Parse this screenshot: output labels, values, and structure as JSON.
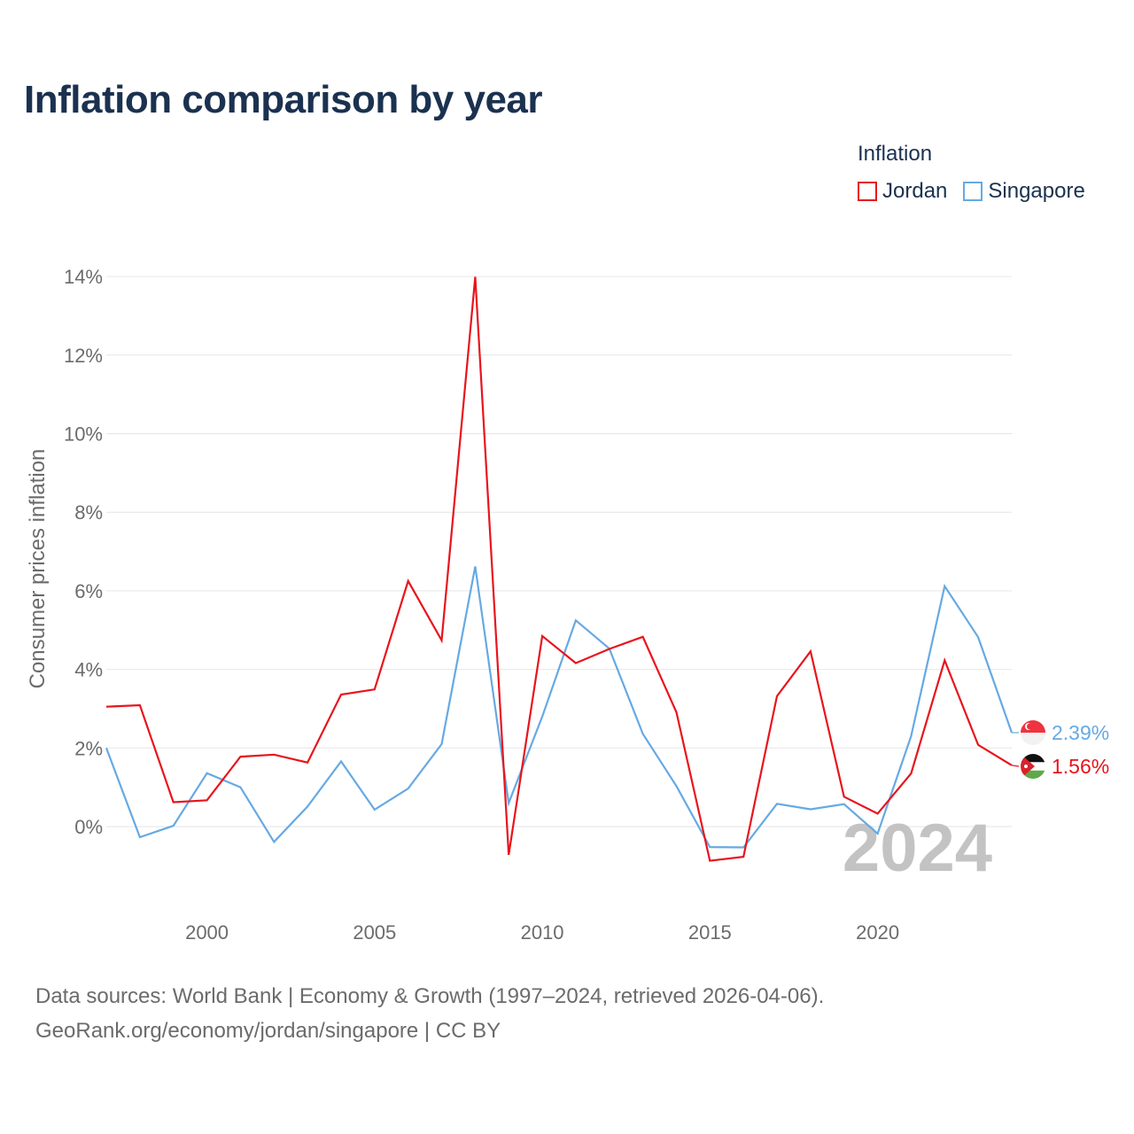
{
  "title": "Inflation comparison by year",
  "legend": {
    "title": "Inflation",
    "items": [
      {
        "label": "Jordan",
        "color": "#e8141c"
      },
      {
        "label": "Singapore",
        "color": "#66a9e3"
      }
    ]
  },
  "footer": {
    "line1": "Data sources: World Bank | Economy & Growth (1997–2024, retrieved 2026-04-06).",
    "line2": "GeoRank.org/economy/jordan/singapore | CC BY"
  },
  "chart_data": {
    "type": "line",
    "title": "Inflation comparison by year",
    "xlabel": "",
    "ylabel": "Consumer prices inflation",
    "x": [
      1997,
      1998,
      1999,
      2000,
      2001,
      2002,
      2003,
      2004,
      2005,
      2006,
      2007,
      2008,
      2009,
      2010,
      2011,
      2012,
      2013,
      2014,
      2015,
      2016,
      2017,
      2018,
      2019,
      2020,
      2021,
      2022,
      2023,
      2024
    ],
    "xlim": [
      1997,
      2024
    ],
    "ylim": [
      -2,
      14
    ],
    "xticks": [
      2000,
      2005,
      2010,
      2015,
      2020
    ],
    "xtick_labels": [
      "2000",
      "2005",
      "2010",
      "2015",
      "2020"
    ],
    "yticks": [
      0,
      2,
      4,
      6,
      8,
      10,
      12,
      14
    ],
    "ytick_labels": [
      "0%",
      "2%",
      "4%",
      "6%",
      "8%",
      "10%",
      "12%",
      "14%"
    ],
    "grid": true,
    "year_watermark": "2024",
    "series": [
      {
        "name": "Jordan",
        "color": "#e8141c",
        "values": [
          3.05,
          3.09,
          0.62,
          0.67,
          1.78,
          1.83,
          1.63,
          3.36,
          3.49,
          6.25,
          4.74,
          13.99,
          -0.72,
          4.85,
          4.16,
          4.52,
          4.83,
          2.91,
          -0.87,
          -0.77,
          3.32,
          4.46,
          0.76,
          0.33,
          1.35,
          4.23,
          2.08,
          1.56
        ],
        "end_label": "1.56%"
      },
      {
        "name": "Singapore",
        "color": "#66a9e3",
        "values": [
          2.0,
          -0.27,
          0.02,
          1.36,
          1.0,
          -0.39,
          0.51,
          1.66,
          0.43,
          0.97,
          2.1,
          6.62,
          0.6,
          2.8,
          5.25,
          4.53,
          2.36,
          1.03,
          -0.52,
          -0.53,
          0.58,
          0.44,
          0.57,
          -0.18,
          2.3,
          6.12,
          4.82,
          2.39
        ],
        "end_label": "2.39%"
      }
    ]
  }
}
